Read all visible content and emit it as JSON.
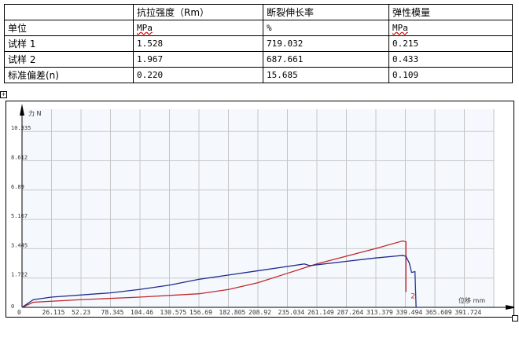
{
  "table": {
    "header": [
      "",
      "抗拉强度（Rm）",
      "断裂伸长率",
      "弹性模量"
    ],
    "rows": [
      [
        "单位",
        "MPa",
        "%",
        "MPa"
      ],
      [
        "试样 1",
        "1.528",
        "719.032",
        "0.215"
      ],
      [
        "试样 2",
        "1.967",
        "687.661",
        "0.433"
      ],
      [
        "标准偏差(n)",
        "0.220",
        "15.685",
        "0.109"
      ]
    ]
  },
  "chart_data": {
    "type": "line",
    "ylabel": "力 N",
    "xlabel": "位移 mm",
    "xlim": [
      0,
      405
    ],
    "ylim": [
      0,
      11.5
    ],
    "x_ticks": [
      "0",
      "26.115",
      "52.23",
      "78.345",
      "104.46",
      "130.575",
      "156.69",
      "182.805",
      "208.92",
      "235.034",
      "261.149",
      "287.264",
      "313.379",
      "339.494",
      "365.609",
      "391.724"
    ],
    "y_ticks": [
      "0",
      "1.722",
      "3.445",
      "5.167",
      "6.89",
      "8.612",
      "10.335"
    ],
    "grid": true,
    "annotation": "2",
    "series": [
      {
        "color": "#c0272d",
        "points": [
          [
            0,
            0
          ],
          [
            10,
            0.3
          ],
          [
            52,
            0.45
          ],
          [
            104,
            0.6
          ],
          [
            157,
            0.8
          ],
          [
            183,
            1.05
          ],
          [
            209,
            1.45
          ],
          [
            235,
            2.0
          ],
          [
            261,
            2.55
          ],
          [
            287,
            3.0
          ],
          [
            313,
            3.45
          ],
          [
            337,
            3.9
          ],
          [
            340,
            3.85
          ],
          [
            340,
            0.9
          ]
        ]
      },
      {
        "color": "#1f2a8c",
        "points": [
          [
            0,
            0
          ],
          [
            10,
            0.45
          ],
          [
            26,
            0.6
          ],
          [
            78,
            0.85
          ],
          [
            104,
            1.05
          ],
          [
            130,
            1.3
          ],
          [
            157,
            1.65
          ],
          [
            183,
            1.9
          ],
          [
            209,
            2.15
          ],
          [
            235,
            2.4
          ],
          [
            250,
            2.55
          ],
          [
            255,
            2.45
          ],
          [
            287,
            2.7
          ],
          [
            313,
            2.9
          ],
          [
            337,
            3.05
          ],
          [
            340,
            3.0
          ],
          [
            343,
            2.6
          ],
          [
            345,
            2.05
          ],
          [
            348,
            2.1
          ],
          [
            349,
            0
          ],
          [
            353,
            0
          ]
        ]
      }
    ]
  }
}
